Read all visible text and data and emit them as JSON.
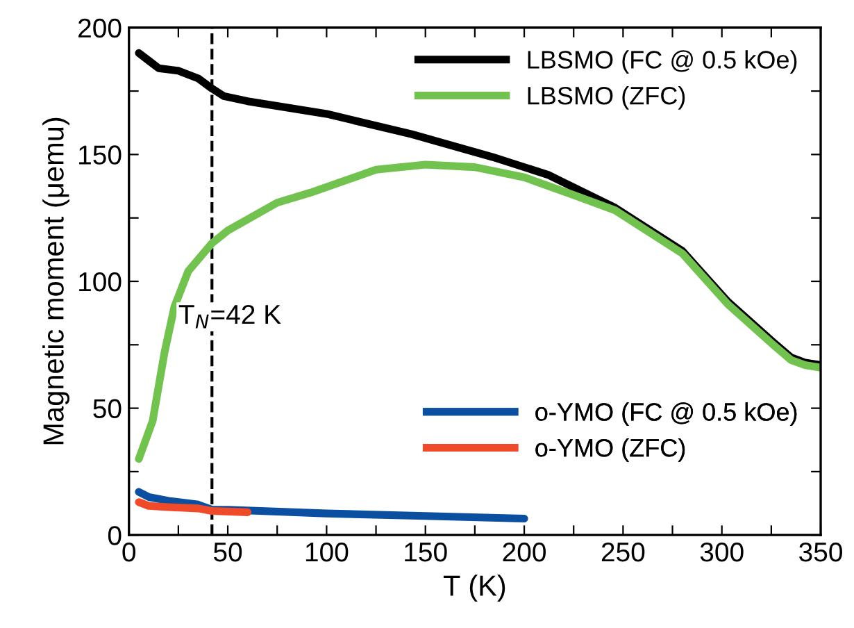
{
  "chart_data": {
    "type": "line",
    "xlabel": "T (K)",
    "ylabel": "Magnetic moment (μemu)",
    "xlim": [
      0,
      350
    ],
    "ylim": [
      0,
      200
    ],
    "xticks": [
      0,
      {
        "value": 25,
        "label": null
      },
      50,
      {
        "value": 75,
        "label": null
      },
      100,
      {
        "value": 125,
        "label": null
      },
      150,
      {
        "value": 175,
        "label": null
      },
      200,
      {
        "value": 225,
        "label": null
      },
      250,
      {
        "value": 275,
        "label": null
      },
      300,
      {
        "value": 325,
        "label": null
      },
      350
    ],
    "yticks": [
      0,
      {
        "value": 25,
        "label": null
      },
      50,
      {
        "value": 75,
        "label": null
      },
      100,
      {
        "value": 125,
        "label": null
      },
      150,
      {
        "value": 175,
        "label": null
      },
      200
    ],
    "grid": false,
    "legend": "right",
    "marker": "none",
    "line_style": "solid",
    "ref_lines": [
      {
        "axis": "x",
        "value": 42,
        "label": "T$_{N}$=42 K",
        "color": "#000000",
        "line_style": "dashed"
      }
    ],
    "series": [
      {
        "name": "LBSMO (FC @ 0.5 kOe)",
        "color": "#000000",
        "x": [
          5,
          10,
          15,
          25,
          35,
          42,
          48,
          60,
          100,
          143,
          184,
          212,
          246,
          280,
          303,
          326,
          335,
          342,
          350
        ],
        "values": [
          190,
          187,
          184,
          183,
          180,
          176,
          173,
          171,
          166,
          158,
          149,
          142,
          129,
          112,
          92,
          76,
          70,
          68,
          67
        ]
      },
      {
        "name": "LBSMO (ZFC)",
        "color": "#72c24f",
        "x": [
          5,
          12,
          18,
          23,
          30,
          42,
          50,
          75,
          92,
          125,
          150,
          175,
          200,
          225,
          246,
          280,
          303,
          326,
          335,
          342,
          350
        ],
        "values": [
          30,
          45,
          72,
          90,
          104,
          115,
          120,
          131,
          135,
          144,
          146,
          145,
          141,
          134,
          128,
          111,
          91,
          75,
          69,
          67,
          66
        ]
      },
      {
        "name": "o-YMO (FC @ 0.5 kOe)",
        "color": "#0b4fa0",
        "x": [
          5,
          10,
          20,
          35,
          42,
          50,
          100,
          150,
          200
        ],
        "values": [
          17,
          15,
          13.5,
          12,
          10,
          10,
          8.5,
          7.5,
          6.5
        ]
      },
      {
        "name": "o-YMO (ZFC)",
        "color": "#ef4a2a",
        "x": [
          5,
          10,
          20,
          35,
          42,
          60
        ],
        "values": [
          13,
          11.5,
          11,
          10.5,
          9.5,
          9
        ]
      }
    ]
  }
}
